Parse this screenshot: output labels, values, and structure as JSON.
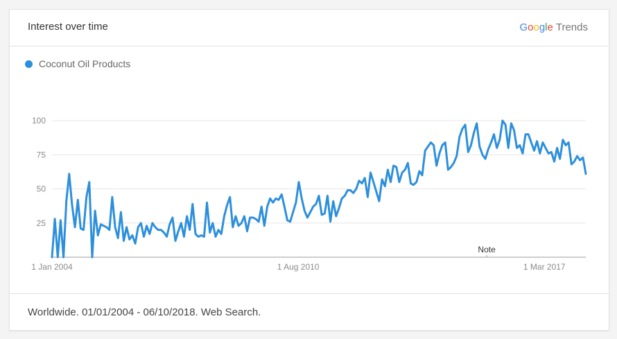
{
  "header": {
    "title": "Interest over time",
    "brand_google": [
      "G",
      "o",
      "o",
      "g",
      "l",
      "e"
    ],
    "brand_trends": "Trends"
  },
  "legend": {
    "series_name": "Coconut Oil Products",
    "color": "#2d8fdc"
  },
  "note_label": "Note",
  "footer": {
    "text": "Worldwide. 01/01/2004 - 06/10/2018. Web Search."
  },
  "chart_data": {
    "type": "line",
    "title": "Interest over time",
    "x_ticks": [
      "1 Jan 2004",
      "1 Aug 2010",
      "1 Mar 2017"
    ],
    "y_ticks": [
      25,
      50,
      75,
      100
    ],
    "ylim": [
      0,
      100
    ],
    "grid": true,
    "legend_position": "top-left",
    "series": [
      {
        "name": "Coconut Oil Products",
        "color": "#2d8fdc",
        "values": [
          0,
          28,
          0,
          27,
          0,
          41,
          61,
          38,
          22,
          42,
          21,
          20,
          44,
          55,
          0,
          34,
          16,
          24,
          23,
          22,
          20,
          44,
          22,
          14,
          33,
          12,
          22,
          13,
          16,
          10,
          22,
          25,
          15,
          23,
          17,
          25,
          22,
          20,
          20,
          18,
          15,
          24,
          29,
          12,
          19,
          25,
          15,
          30,
          20,
          39,
          17,
          15,
          16,
          15,
          40,
          18,
          25,
          15,
          20,
          17,
          30,
          38,
          44,
          22,
          30,
          23,
          25,
          30,
          19,
          29,
          29,
          28,
          26,
          37,
          23,
          37,
          43,
          40,
          43,
          42,
          46,
          37,
          27,
          26,
          33,
          40,
          55,
          43,
          34,
          29,
          33,
          37,
          39,
          45,
          31,
          32,
          45,
          26,
          41,
          30,
          36,
          43,
          45,
          49,
          49,
          47,
          50,
          56,
          54,
          58,
          44,
          62,
          55,
          48,
          41,
          57,
          52,
          64,
          55,
          67,
          66,
          55,
          62,
          64,
          69,
          54,
          53,
          55,
          63,
          60,
          78,
          81,
          84,
          82,
          67,
          76,
          82,
          84,
          64,
          66,
          69,
          74,
          88,
          94,
          97,
          77,
          82,
          91,
          98,
          81,
          75,
          72,
          79,
          84,
          90,
          80,
          86,
          100,
          97,
          80,
          98,
          93,
          80,
          82,
          76,
          90,
          90,
          84,
          78,
          85,
          76,
          84,
          80,
          76,
          77,
          70,
          80,
          72,
          86,
          82,
          84,
          68,
          70,
          74,
          71,
          73,
          61
        ]
      }
    ],
    "note_at_index": 158
  }
}
